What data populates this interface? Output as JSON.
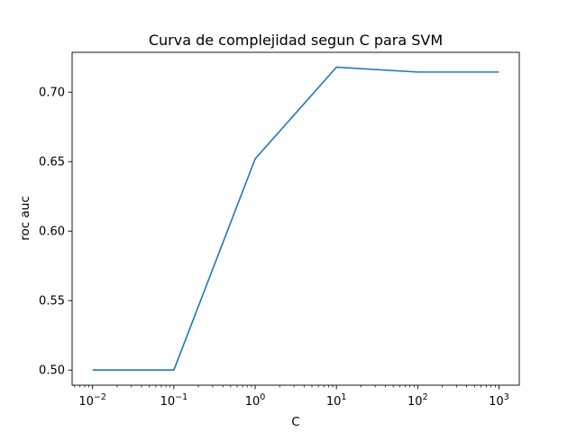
{
  "chart_data": {
    "type": "line",
    "title": "Curva de complejidad segun C para SVM",
    "xlabel": "C",
    "ylabel": "roc auc",
    "xscale": "log",
    "xlim": [
      0.0056,
      1778
    ],
    "ylim": [
      0.4891,
      0.7287
    ],
    "x_ticks": [
      {
        "base": "10",
        "exp": "−2",
        "value": 0.01
      },
      {
        "base": "10",
        "exp": "−1",
        "value": 0.1
      },
      {
        "base": "10",
        "exp": "0",
        "value": 1
      },
      {
        "base": "10",
        "exp": "1",
        "value": 10
      },
      {
        "base": "10",
        "exp": "2",
        "value": 100
      },
      {
        "base": "10",
        "exp": "3",
        "value": 1000
      }
    ],
    "y_ticks": [
      "0.50",
      "0.55",
      "0.60",
      "0.65",
      "0.70"
    ],
    "series": [
      {
        "color": "#1f77b4",
        "x": [
          0.01,
          0.1,
          1,
          10,
          100,
          1000
        ],
        "y": [
          0.5,
          0.5,
          0.652,
          0.718,
          0.7145,
          0.7145
        ]
      }
    ],
    "grid": false,
    "legend": "none"
  }
}
